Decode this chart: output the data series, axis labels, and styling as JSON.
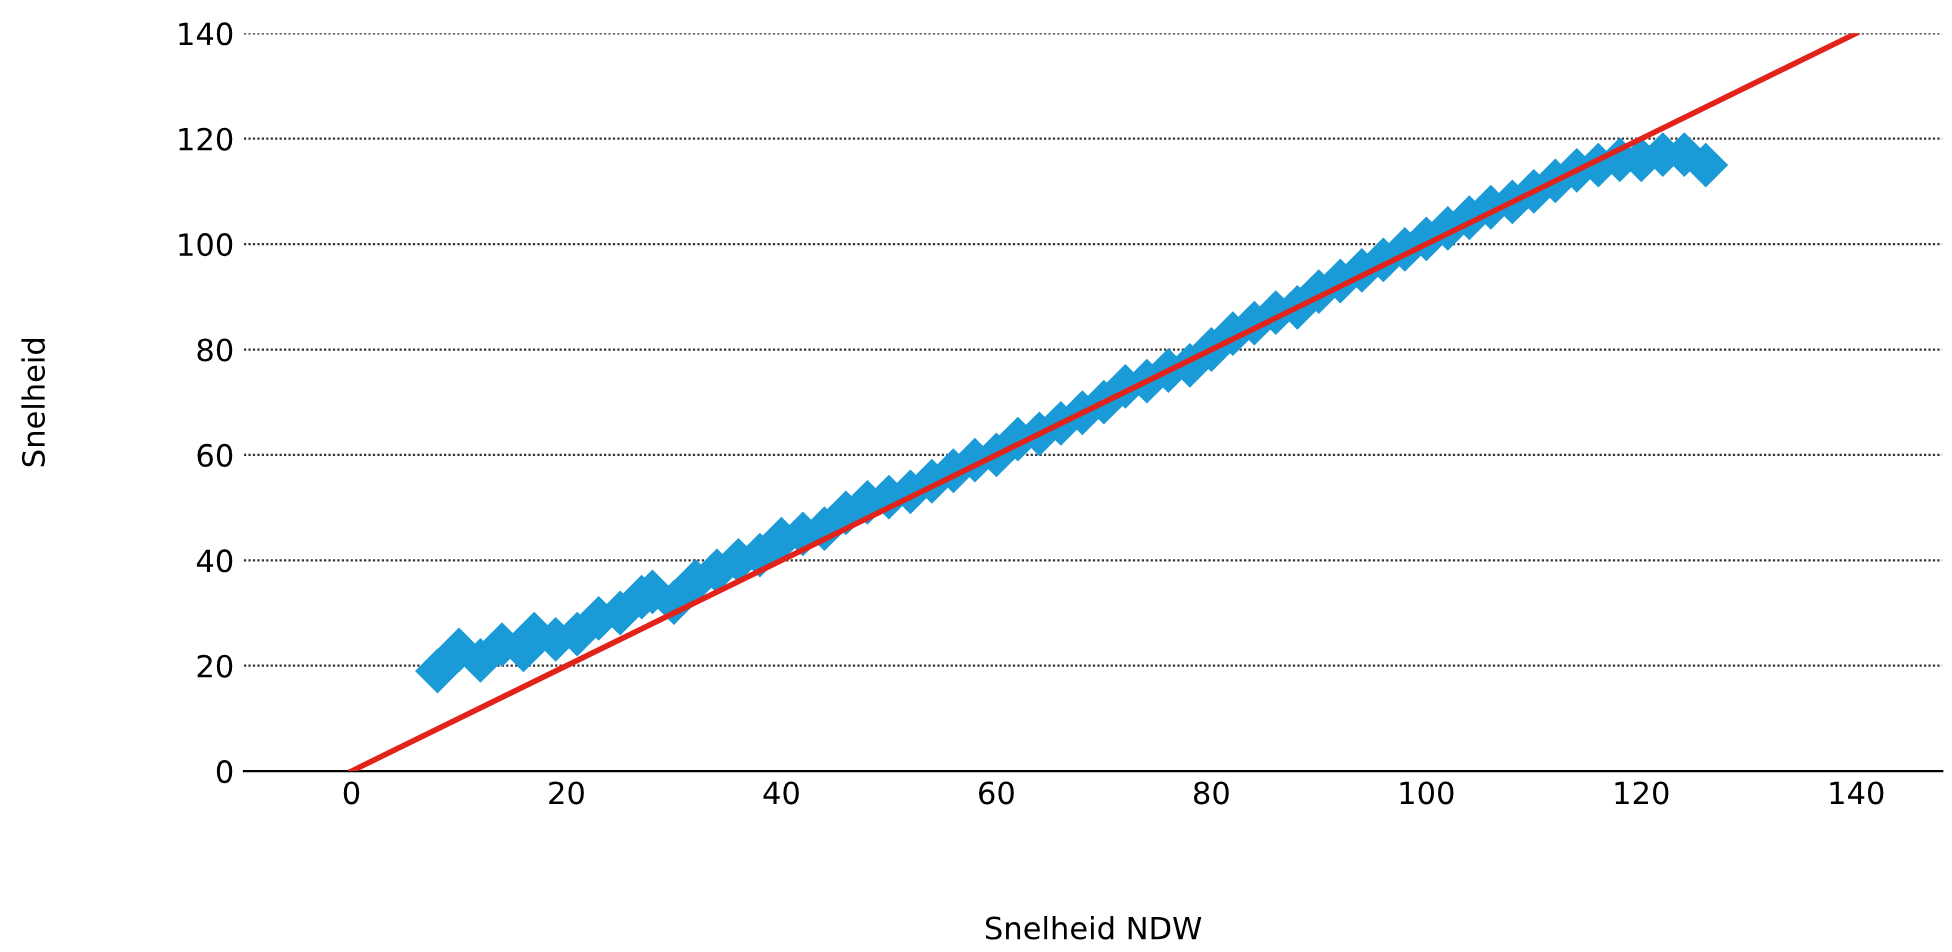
{
  "chart_data": {
    "type": "scatter",
    "xlabel": "Snelheid NDW",
    "ylabel": "Snelheid",
    "xlim": [
      -10,
      148
    ],
    "xticks": [
      0,
      20,
      40,
      60,
      80,
      100,
      120,
      140
    ],
    "ylim": [
      0,
      140
    ],
    "yticks": [
      0,
      20,
      40,
      60,
      80,
      100,
      120,
      140
    ],
    "grid": "y",
    "series": [
      {
        "marker": "diamond",
        "color": "#1a9ad6",
        "x": [
          8,
          10,
          12,
          14,
          16,
          17,
          19,
          21,
          23,
          25,
          27,
          28,
          30,
          32,
          34,
          36,
          38,
          40,
          42,
          44,
          46,
          48,
          50,
          52,
          54,
          56,
          58,
          60,
          62,
          64,
          66,
          68,
          70,
          72,
          74,
          76,
          78,
          80,
          82,
          84,
          86,
          88,
          90,
          92,
          94,
          96,
          98,
          100,
          102,
          104,
          106,
          108,
          110,
          112,
          114,
          116,
          118,
          120,
          122,
          124,
          126
        ],
        "values": [
          19,
          23,
          21,
          24,
          23,
          26,
          25,
          26,
          29,
          30,
          33,
          34,
          32,
          36,
          38,
          40,
          41,
          44,
          45,
          46,
          49,
          51,
          52,
          53,
          55,
          57,
          59,
          60,
          63,
          64,
          66,
          68,
          70,
          73,
          74,
          76,
          77,
          80,
          83,
          85,
          87,
          88,
          91,
          93,
          95,
          97,
          99,
          101,
          103,
          105,
          107,
          108,
          110,
          112,
          114,
          115,
          116,
          116,
          117,
          117,
          115
        ]
      },
      {
        "type": "line",
        "color": "#e2231a",
        "x": [
          0,
          140
        ],
        "values": [
          0,
          140
        ]
      }
    ]
  }
}
